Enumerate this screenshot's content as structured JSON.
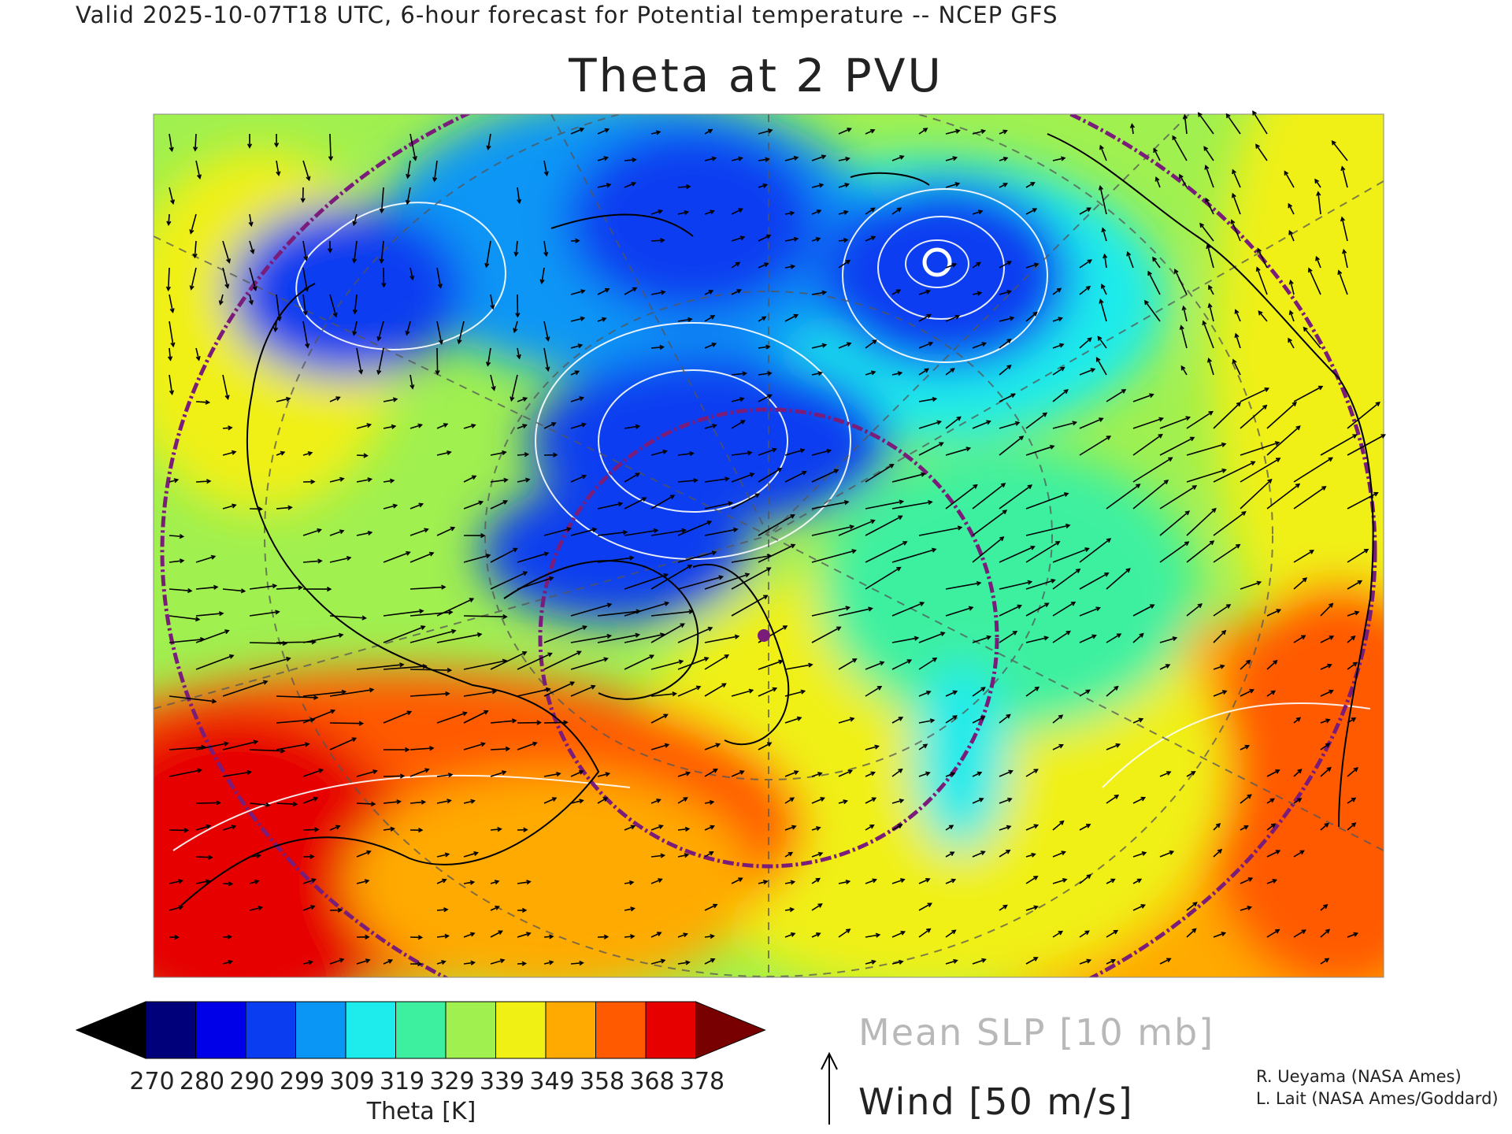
{
  "header": "Valid 2025-10-07T18 UTC, 6-hour forecast for Potential temperature -- NCEP GFS",
  "title": "Theta at 2 PVU",
  "colorbar": {
    "ticks": [
      "270",
      "280",
      "290",
      "299",
      "309",
      "319",
      "329",
      "339",
      "349",
      "358",
      "368",
      "378"
    ],
    "colors": [
      "#000000",
      "#00007a",
      "#0000e8",
      "#0a3cf0",
      "#0a96f5",
      "#1eebeb",
      "#3cf0a0",
      "#a0f050",
      "#f0f014",
      "#ffaa00",
      "#ff5a00",
      "#e60000",
      "#780000"
    ],
    "label": "Theta [K]"
  },
  "legend": {
    "slp": "Mean SLP [10 mb]",
    "wind": "Wind [50 m/s]"
  },
  "credits": {
    "line1": "R. Ueyama (NASA Ames)",
    "line2": "L. Lait (NASA Ames/Goddard)"
  },
  "map": {
    "projection": "polar stereographic",
    "field_colors": [
      "#0000e8",
      "#0a3cf0",
      "#0a96f5",
      "#1eebeb",
      "#3cf0a0",
      "#a0f050",
      "#f0f014",
      "#ffaa00",
      "#ff5a00",
      "#e60000",
      "#780000"
    ],
    "contour_color": "#ffffff",
    "latitude_circle_color": "#7a1c7a",
    "marker_color": "#7a1c7a"
  }
}
